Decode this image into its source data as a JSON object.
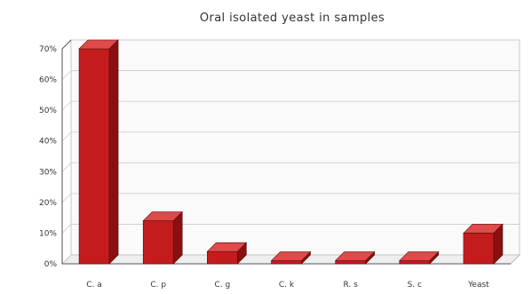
{
  "chart_data": {
    "type": "bar",
    "title": "Oral isolated yeast in samples",
    "xlabel": "",
    "ylabel": "",
    "categories": [
      "C. a",
      "C. p",
      "C. g",
      "C. k",
      "R. s",
      "S. c",
      "Yeast"
    ],
    "values": [
      70,
      14,
      4,
      1,
      1,
      1,
      10
    ],
    "ylim": [
      0,
      70
    ],
    "yticks": [
      "0%",
      "10%",
      "20%",
      "30%",
      "40%",
      "50%",
      "60%",
      "70%"
    ],
    "grid": true,
    "three_d": true,
    "bar_color": "#c41c1c",
    "bar_top_color": "#df4a4a",
    "bar_side_color": "#8a1010"
  }
}
